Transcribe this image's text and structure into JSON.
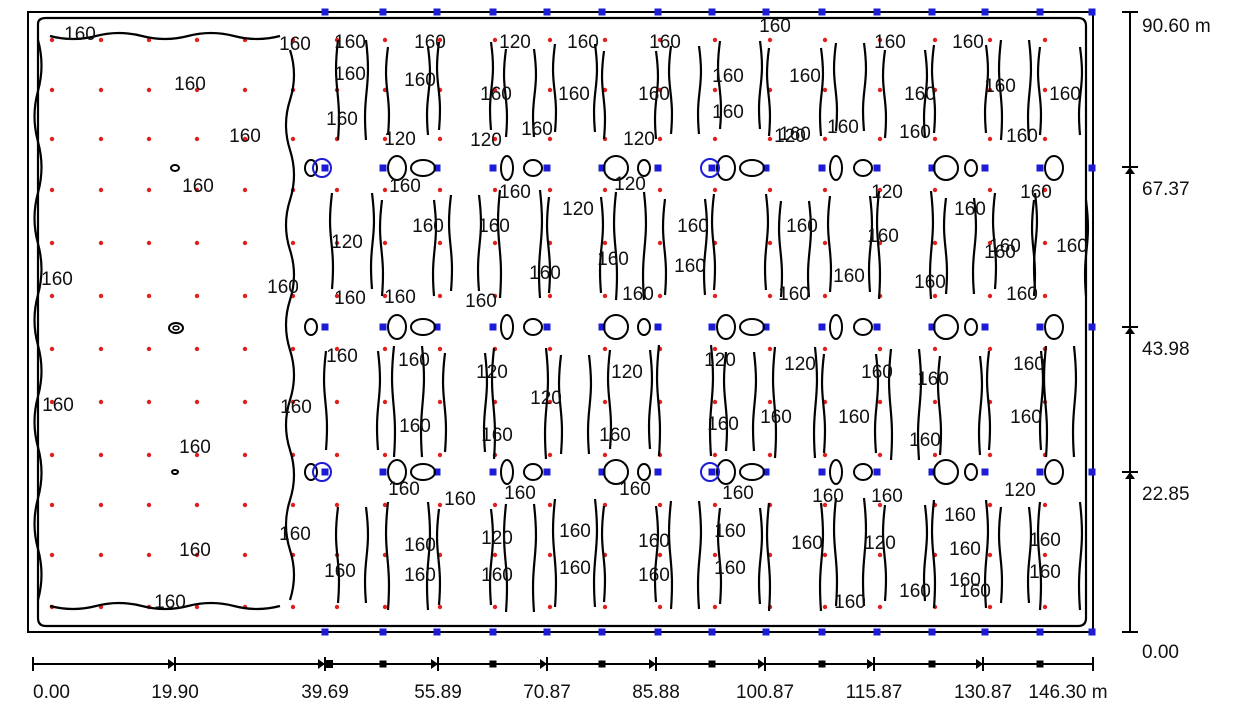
{
  "chart_data": {
    "type": "contour",
    "x_ticks": [
      "0.00",
      "19.90",
      "39.69",
      "55.89",
      "70.87",
      "85.88",
      "100.87",
      "115.87",
      "130.87",
      "146.30 m"
    ],
    "y_ticks": [
      "0.00",
      "22.85",
      "43.98",
      "67.37",
      "90.60 m"
    ],
    "contour_levels": [
      "120",
      "160"
    ],
    "contour_labels": [
      "160",
      "160",
      "160",
      "160",
      "160",
      "160",
      "160",
      "120",
      "160",
      "160",
      "160",
      "160",
      "160",
      "160",
      "160",
      "160",
      "160",
      "160",
      "160",
      "160",
      "160",
      "160",
      "160",
      "160",
      "160",
      "160",
      "120",
      "120",
      "160",
      "120",
      "120",
      "160",
      "160",
      "160",
      "120",
      "160",
      "120",
      "160",
      "120",
      "160",
      "160",
      "120",
      "160",
      "160",
      "160",
      "160",
      "160",
      "160",
      "160",
      "160",
      "160",
      "160",
      "160",
      "160",
      "160",
      "160",
      "160",
      "160",
      "160",
      "160",
      "160",
      "160",
      "160",
      "160",
      "160",
      "120",
      "120",
      "120",
      "120",
      "120",
      "160",
      "160",
      "160",
      "160",
      "160",
      "160",
      "160",
      "160",
      "160",
      "160",
      "160",
      "160",
      "160",
      "160",
      "160",
      "160",
      "160",
      "160",
      "160",
      "160",
      "160",
      "160",
      "120",
      "160",
      "160",
      "120",
      "160",
      "160",
      "160",
      "160",
      "120",
      "160",
      "160",
      "160",
      "160",
      "160",
      "160",
      "160",
      "160",
      "160",
      "160",
      "160",
      "160",
      "160",
      "160",
      "160",
      "160",
      "160",
      "160",
      "160",
      "160",
      "120",
      "160",
      "160"
    ],
    "colors": {
      "grid_point": "#e02020",
      "luminaire": "#1c1cd6",
      "contour": "#000000"
    }
  }
}
